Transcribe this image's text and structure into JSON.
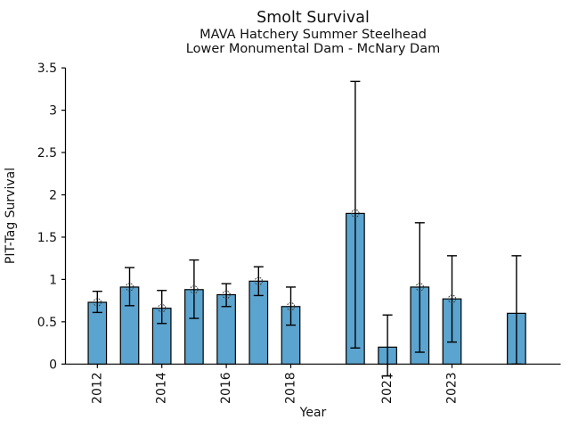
{
  "header": {
    "title": "Smolt Survival",
    "subtitle1": "MAVA Hatchery Summer Steelhead",
    "subtitle2": "Lower Monumental Dam - McNary Dam"
  },
  "chart_data": {
    "type": "bar",
    "title": "Smolt Survival",
    "subtitle": [
      "MAVA Hatchery Summer Steelhead",
      "Lower Monumental Dam - McNary Dam"
    ],
    "xlabel": "Year",
    "ylabel": "PIT-Tag Survival",
    "ylim": [
      0,
      3.5
    ],
    "y_ticks": [
      "0",
      "0.5",
      "1",
      "1.5",
      "2",
      "2.5",
      "3",
      "3.5"
    ],
    "x_tick_years": [
      2012,
      2014,
      2016,
      2018,
      2021,
      2023
    ],
    "grid": false,
    "legend": "none",
    "bar_color": "#5BA4CF",
    "bar_edge_color": "#000000",
    "error_bar_color": "#000000",
    "marker": "open-circle",
    "points": [
      {
        "year": 2012,
        "value": 0.73,
        "err_lo": 0.61,
        "err_hi": 0.86,
        "marker": true
      },
      {
        "year": 2013,
        "value": 0.91,
        "err_lo": 0.69,
        "err_hi": 1.14,
        "marker": true
      },
      {
        "year": 2014,
        "value": 0.66,
        "err_lo": 0.48,
        "err_hi": 0.87,
        "marker": true
      },
      {
        "year": 2015,
        "value": 0.88,
        "err_lo": 0.54,
        "err_hi": 1.23,
        "marker": true
      },
      {
        "year": 2016,
        "value": 0.82,
        "err_lo": 0.68,
        "err_hi": 0.95,
        "marker": true
      },
      {
        "year": 2017,
        "value": 0.98,
        "err_lo": 0.81,
        "err_hi": 1.15,
        "marker": true
      },
      {
        "year": 2018,
        "value": 0.68,
        "err_lo": 0.46,
        "err_hi": 0.91,
        "marker": true
      },
      {
        "year": 2020,
        "value": 1.78,
        "err_lo": 0.19,
        "err_hi": 3.34,
        "marker": true
      },
      {
        "year": 2021,
        "value": 0.2,
        "err_lo": -0.14,
        "err_hi": 0.58,
        "marker": false
      },
      {
        "year": 2022,
        "value": 0.91,
        "err_lo": 0.14,
        "err_hi": 1.67,
        "marker": true
      },
      {
        "year": 2023,
        "value": 0.77,
        "err_lo": 0.26,
        "err_hi": 1.28,
        "marker": true
      },
      {
        "year": 2025,
        "value": 0.6,
        "err_lo": 0.0,
        "err_hi": 1.28,
        "marker": false
      }
    ]
  }
}
